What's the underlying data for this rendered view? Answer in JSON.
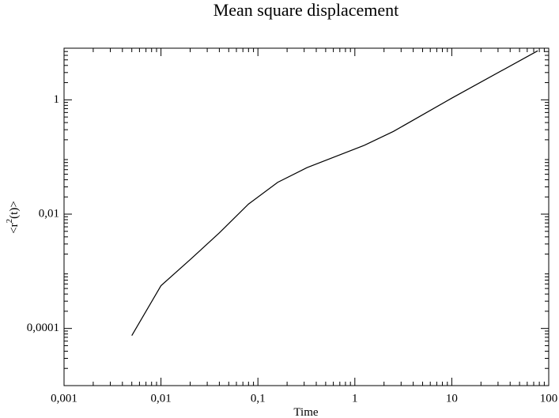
{
  "chart_data": {
    "type": "line",
    "title": "Mean square displacement",
    "x_label": "Time",
    "y_label": [
      "<r",
      "2",
      "(t)>"
    ],
    "x": [
      0.005,
      0.01,
      0.02,
      0.04,
      0.08,
      0.16,
      0.32,
      1.25,
      2.5,
      10,
      77
    ],
    "series": [
      {
        "color": "#000000",
        "values": [
          7.5e-05,
          0.00056,
          0.0016,
          0.0047,
          0.015,
          0.036,
          0.065,
          0.16,
          0.28,
          1.07,
          7.2
        ]
      }
    ],
    "x_log": true,
    "y_log": true,
    "minor_ticks": true,
    "xlim": [
      0.001,
      100
    ],
    "ylim": [
      1e-05,
      8
    ],
    "xticks": [
      {
        "value": 0.001,
        "label": "0,001"
      },
      {
        "value": 0.01,
        "label": "0,01"
      },
      {
        "value": 0.1,
        "label": "0,1"
      },
      1,
      10,
      100
    ],
    "yticks": [
      {
        "value": 0.0001,
        "label": "0,0001"
      },
      {
        "value": 0.01,
        "label": "0,01"
      },
      1
    ]
  }
}
